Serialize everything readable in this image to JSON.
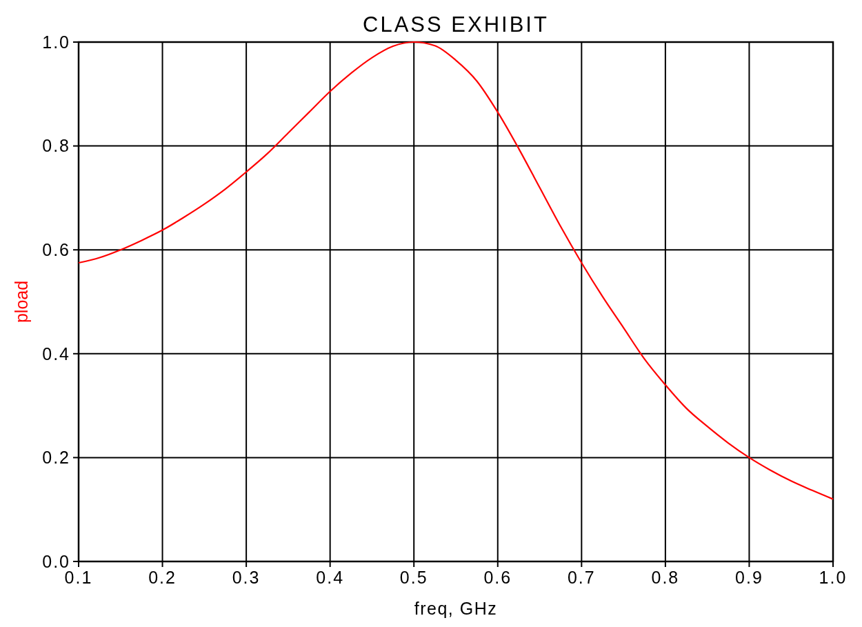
{
  "chart_data": {
    "type": "line",
    "title": "CLASS EXHIBIT",
    "xlabel": "freq, GHz",
    "ylabel": "pload",
    "x": [
      0.1,
      0.125,
      0.15,
      0.175,
      0.2,
      0.225,
      0.25,
      0.275,
      0.3,
      0.325,
      0.35,
      0.375,
      0.4,
      0.425,
      0.45,
      0.475,
      0.5,
      0.525,
      0.55,
      0.575,
      0.6,
      0.625,
      0.65,
      0.675,
      0.7,
      0.725,
      0.75,
      0.775,
      0.8,
      0.825,
      0.85,
      0.875,
      0.9,
      0.925,
      0.95,
      0.975,
      1.0
    ],
    "series": [
      {
        "color": "#ff0000",
        "values": [
          0.575,
          0.585,
          0.6,
          0.618,
          0.638,
          0.662,
          0.688,
          0.717,
          0.75,
          0.785,
          0.825,
          0.865,
          0.905,
          0.94,
          0.97,
          0.992,
          1.0,
          0.993,
          0.965,
          0.925,
          0.865,
          0.795,
          0.72,
          0.645,
          0.575,
          0.51,
          0.45,
          0.39,
          0.34,
          0.295,
          0.26,
          0.228,
          0.2,
          0.176,
          0.155,
          0.137,
          0.12
        ]
      }
    ],
    "xlim": [
      0.1,
      1.0
    ],
    "xticks": [
      0.1,
      0.2,
      0.3,
      0.4,
      0.5,
      0.6,
      0.7,
      0.8,
      0.9,
      {
        "value": 1.0,
        "label": "1.0"
      }
    ],
    "ylim": [
      0.0,
      1.0
    ],
    "yticks": [
      {
        "value": 0.0,
        "label": "0.0"
      },
      0.2,
      0.4,
      0.6,
      0.8,
      {
        "value": 1.0,
        "label": "1.0"
      }
    ],
    "grid": true,
    "marker": "none",
    "line_style": "solid"
  }
}
